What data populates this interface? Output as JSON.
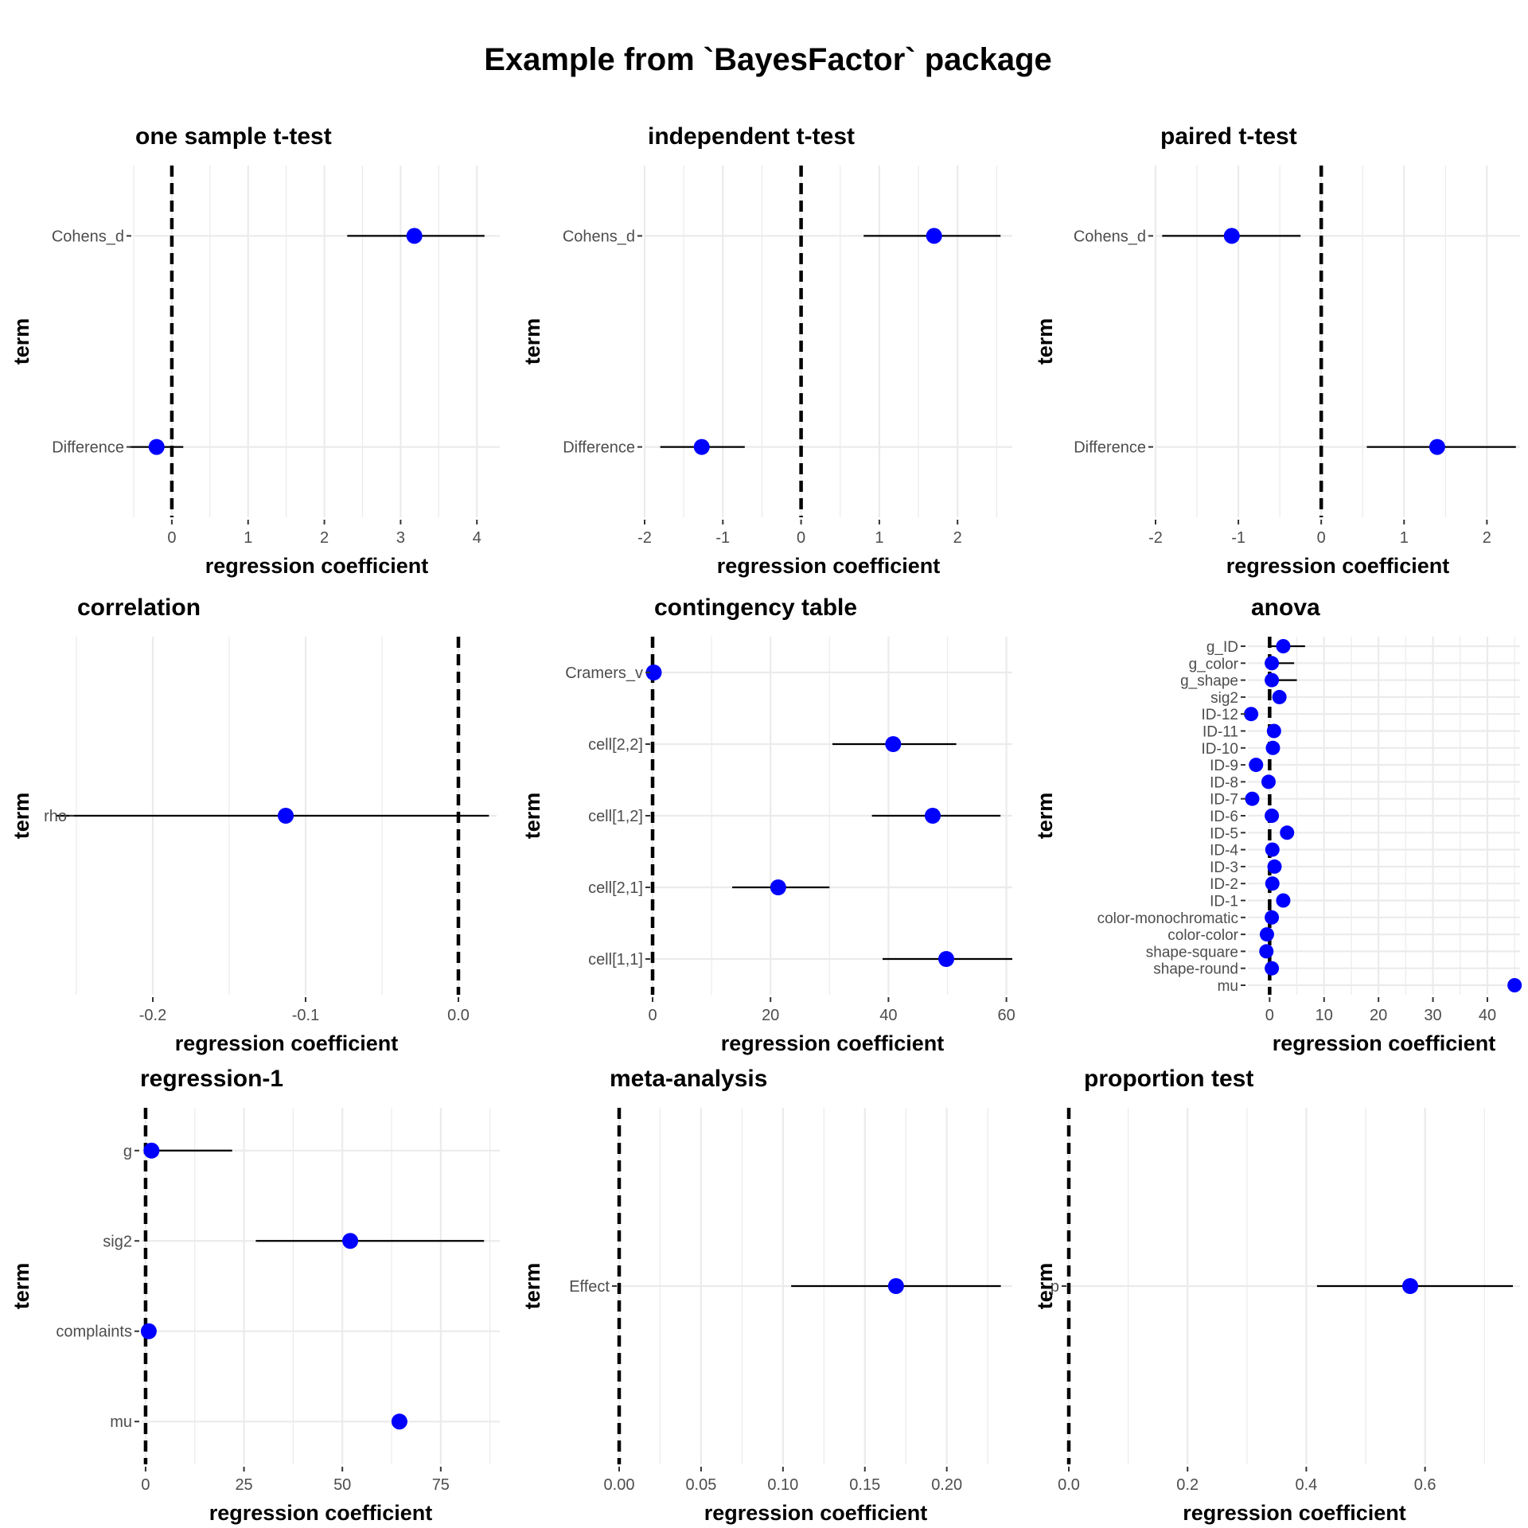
{
  "title": "Example from `BayesFactor` package",
  "colors": {
    "point": "#0000ff",
    "interval": "#000000",
    "zero_line": "#000000",
    "grid": "#ebebeb"
  },
  "chart_data": [
    {
      "type": "scatter",
      "title": "one sample t-test",
      "xlabel": "regression coefficient",
      "ylabel": "term",
      "xlim": [
        -0.5,
        4.3
      ],
      "xticks": [
        "0",
        "1",
        "2",
        "3",
        "4"
      ],
      "xtick_values": [
        0,
        1,
        2,
        3,
        4
      ],
      "terms": [
        "Cohens_d",
        "Difference"
      ],
      "estimates": [
        3.18,
        -0.2
      ],
      "ci_low": [
        2.3,
        -0.55
      ],
      "ci_high": [
        4.1,
        0.15
      ]
    },
    {
      "type": "scatter",
      "title": "independent t-test",
      "xlabel": "regression coefficient",
      "ylabel": "term",
      "xlim": [
        -2.0,
        2.7
      ],
      "xticks": [
        "-2",
        "-1",
        "0",
        "1",
        "2"
      ],
      "xtick_values": [
        -2,
        -1,
        0,
        1,
        2
      ],
      "terms": [
        "Cohens_d",
        "Difference"
      ],
      "estimates": [
        1.7,
        -1.27
      ],
      "ci_low": [
        0.8,
        -1.8
      ],
      "ci_high": [
        2.55,
        -0.72
      ]
    },
    {
      "type": "scatter",
      "title": "paired t-test",
      "xlabel": "regression coefficient",
      "ylabel": "term",
      "xlim": [
        -2.0,
        2.4
      ],
      "xticks": [
        "-2",
        "-1",
        "0",
        "1",
        "2"
      ],
      "xtick_values": [
        -2,
        -1,
        0,
        1,
        2
      ],
      "terms": [
        "Cohens_d",
        "Difference"
      ],
      "estimates": [
        -1.08,
        1.4
      ],
      "ci_low": [
        -1.92,
        0.55
      ],
      "ci_high": [
        -0.25,
        2.35
      ]
    },
    {
      "type": "scatter",
      "title": "correlation",
      "xlabel": "regression coefficient",
      "ylabel": "term",
      "xlim": [
        -0.25,
        0.025
      ],
      "xticks": [
        "-0.2",
        "-0.1",
        "0.0"
      ],
      "xtick_values": [
        -0.2,
        -0.1,
        0
      ],
      "terms": [
        "rho"
      ],
      "estimates": [
        -0.113
      ],
      "ci_low": [
        -0.263
      ],
      "ci_high": [
        0.02
      ]
    },
    {
      "type": "scatter",
      "title": "contingency table",
      "xlabel": "regression coefficient",
      "ylabel": "term",
      "xlim": [
        0,
        61
      ],
      "xticks": [
        "0",
        "20",
        "40",
        "60"
      ],
      "xtick_values": [
        0,
        20,
        40,
        60
      ],
      "terms": [
        "Cramers_v",
        "cell[2,2]",
        "cell[1,2]",
        "cell[2,1]",
        "cell[1,1]"
      ],
      "estimates": [
        0.2,
        40.8,
        47.5,
        21.3,
        49.8
      ],
      "ci_low": [
        0.1,
        30.5,
        37.2,
        13.5,
        39.0
      ],
      "ci_high": [
        0.3,
        51.5,
        59.0,
        30.0,
        61.0
      ]
    },
    {
      "type": "scatter",
      "title": "anova",
      "xlabel": "regression coefficient",
      "ylabel": "term",
      "xlim": [
        -4,
        46
      ],
      "xticks": [
        "0",
        "10",
        "20",
        "30",
        "40"
      ],
      "xtick_values": [
        0,
        10,
        20,
        30,
        40
      ],
      "terms": [
        "g_ID",
        "g_color",
        "g_shape",
        "sig2",
        "ID-12",
        "ID-11",
        "ID-10",
        "ID-9",
        "ID-8",
        "ID-7",
        "ID-6",
        "ID-5",
        "ID-4",
        "ID-3",
        "ID-2",
        "ID-1",
        "color-monochromatic",
        "color-color",
        "shape-square",
        "shape-round",
        "mu"
      ],
      "estimates": [
        2.5,
        0.4,
        0.4,
        1.8,
        -3.4,
        0.8,
        0.6,
        -2.5,
        -0.2,
        -3.2,
        0.4,
        3.2,
        0.5,
        0.9,
        0.5,
        2.5,
        0.4,
        -0.5,
        -0.6,
        0.4,
        45.0
      ],
      "ci_low": [
        0.2,
        0.1,
        0.1,
        1.0,
        -3.9,
        0.2,
        0.0,
        -3.1,
        -0.8,
        -3.8,
        -0.2,
        2.4,
        -0.1,
        0.3,
        -0.1,
        1.7,
        -0.2,
        -1.1,
        -1.2,
        -0.2,
        44.5
      ],
      "ci_high": [
        6.5,
        4.5,
        5.0,
        2.6,
        -2.9,
        1.4,
        1.2,
        -1.9,
        0.4,
        -2.6,
        1.0,
        4.0,
        1.1,
        1.5,
        1.1,
        3.3,
        1.0,
        0.1,
        0.0,
        1.0,
        45.5
      ]
    },
    {
      "type": "scatter",
      "title": "regression-1",
      "xlabel": "regression coefficient",
      "ylabel": "term",
      "xlim": [
        -1,
        90
      ],
      "xticks": [
        "0",
        "25",
        "50",
        "75"
      ],
      "xtick_values": [
        0,
        25,
        50,
        75
      ],
      "terms": [
        "g",
        "sig2",
        "complaints",
        "mu"
      ],
      "estimates": [
        1.5,
        52.0,
        0.8,
        64.5
      ],
      "ci_low": [
        0.2,
        28.0,
        0.6,
        62.5
      ],
      "ci_high": [
        22.0,
        86.0,
        1.0,
        66.5
      ]
    },
    {
      "type": "scatter",
      "title": "meta-analysis",
      "xlabel": "regression coefficient",
      "ylabel": "term",
      "xlim": [
        0,
        0.24
      ],
      "xticks": [
        "0.00",
        "0.05",
        "0.10",
        "0.15",
        "0.20"
      ],
      "xtick_values": [
        0,
        0.05,
        0.1,
        0.15,
        0.2
      ],
      "terms": [
        "Effect"
      ],
      "estimates": [
        0.169
      ],
      "ci_low": [
        0.105
      ],
      "ci_high": [
        0.233
      ]
    },
    {
      "type": "scatter",
      "title": "proportion test",
      "xlabel": "regression coefficient",
      "ylabel": "term",
      "xlim": [
        0,
        0.76
      ],
      "xticks": [
        "0.0",
        "0.2",
        "0.4",
        "0.6"
      ],
      "xtick_values": [
        0,
        0.2,
        0.4,
        0.6
      ],
      "terms": [
        "p"
      ],
      "estimates": [
        0.575
      ],
      "ci_low": [
        0.418
      ],
      "ci_high": [
        0.748
      ]
    }
  ]
}
